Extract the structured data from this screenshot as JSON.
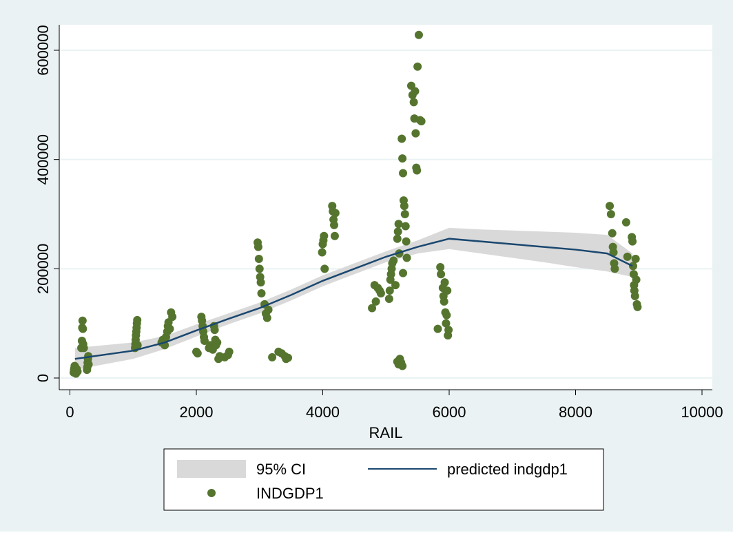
{
  "chart_data": {
    "type": "scatter",
    "title": "",
    "xlabel": "RAIL",
    "ylabel": "",
    "xlim": [
      0,
      10000
    ],
    "ylim": [
      0,
      600000
    ],
    "x_ticks": [
      0,
      2000,
      4000,
      6000,
      8000,
      10000
    ],
    "y_ticks": [
      0,
      200000,
      400000,
      600000
    ],
    "x_tick_labels": [
      "0",
      "2000",
      "4000",
      "6000",
      "8000",
      "10000"
    ],
    "y_tick_labels": [
      "0",
      "200000",
      "400000",
      "600000"
    ],
    "grid": "horizontal",
    "legend_position": "bottom",
    "colors": {
      "background_outer": "#eaf2f3",
      "plot_area": "#ffffff",
      "grid": "#eaf2f3",
      "ci_band": "#d9d9d9",
      "fit_line": "#1a476f",
      "points": "#55752f"
    },
    "legend": [
      {
        "label": "95% CI",
        "kind": "band"
      },
      {
        "label": "predicted indgdp1",
        "kind": "line"
      },
      {
        "label": "INDGDP1",
        "kind": "marker"
      }
    ],
    "fit_line": {
      "name": "predicted indgdp1",
      "x": [
        80,
        1000,
        1500,
        2000,
        2500,
        3000,
        3500,
        4000,
        4500,
        5000,
        5500,
        6000,
        6500,
        7000,
        7500,
        8000,
        8500,
        8900
      ],
      "y": [
        35000,
        50000,
        65000,
        87000,
        108000,
        128000,
        152000,
        178000,
        200000,
        222000,
        240000,
        255000,
        250000,
        245000,
        240000,
        235000,
        228000,
        205000
      ]
    },
    "ci_band": {
      "name": "95% CI",
      "x": [
        80,
        1000,
        1500,
        2000,
        2500,
        3000,
        3500,
        4000,
        4500,
        5000,
        5500,
        6000,
        6500,
        7000,
        7500,
        8000,
        8500,
        8900
      ],
      "lower": [
        15000,
        35000,
        53000,
        76000,
        98000,
        118000,
        142000,
        168000,
        190000,
        212000,
        228000,
        236000,
        228000,
        220000,
        212000,
        203000,
        195000,
        185000
      ],
      "upper": [
        55000,
        65000,
        77000,
        98000,
        118000,
        138000,
        162000,
        188000,
        210000,
        232000,
        252000,
        275000,
        272000,
        270000,
        268000,
        266000,
        262000,
        228000
      ]
    },
    "series": [
      {
        "name": "INDGDP1",
        "points": [
          [
            60,
            10000
          ],
          [
            65,
            15000
          ],
          [
            70,
            18000
          ],
          [
            75,
            22000
          ],
          [
            80,
            12000
          ],
          [
            85,
            20000
          ],
          [
            95,
            8000
          ],
          [
            110,
            16000
          ],
          [
            120,
            12000
          ],
          [
            180,
            55000
          ],
          [
            190,
            68000
          ],
          [
            195,
            92000
          ],
          [
            200,
            105000
          ],
          [
            205,
            90000
          ],
          [
            210,
            62000
          ],
          [
            220,
            55000
          ],
          [
            270,
            15000
          ],
          [
            275,
            20000
          ],
          [
            280,
            28000
          ],
          [
            285,
            35000
          ],
          [
            290,
            40000
          ],
          [
            295,
            25000
          ],
          [
            1030,
            55000
          ],
          [
            1035,
            62000
          ],
          [
            1040,
            70000
          ],
          [
            1045,
            78000
          ],
          [
            1050,
            85000
          ],
          [
            1055,
            92000
          ],
          [
            1060,
            100000
          ],
          [
            1065,
            106000
          ],
          [
            1070,
            60000
          ],
          [
            1450,
            65000
          ],
          [
            1470,
            70000
          ],
          [
            1500,
            60000
          ],
          [
            1520,
            75000
          ],
          [
            1540,
            85000
          ],
          [
            1550,
            95000
          ],
          [
            1560,
            102000
          ],
          [
            1580,
            90000
          ],
          [
            1600,
            120000
          ],
          [
            1620,
            112000
          ],
          [
            2000,
            48000
          ],
          [
            2020,
            45000
          ],
          [
            2080,
            112000
          ],
          [
            2090,
            105000
          ],
          [
            2100,
            95000
          ],
          [
            2110,
            85000
          ],
          [
            2120,
            75000
          ],
          [
            2130,
            68000
          ],
          [
            2200,
            55000
          ],
          [
            2220,
            60000
          ],
          [
            2260,
            52000
          ],
          [
            2280,
            95000
          ],
          [
            2290,
            88000
          ],
          [
            2300,
            70000
          ],
          [
            2310,
            60000
          ],
          [
            2330,
            65000
          ],
          [
            2350,
            35000
          ],
          [
            2370,
            40000
          ],
          [
            2450,
            38000
          ],
          [
            2500,
            42000
          ],
          [
            2520,
            48000
          ],
          [
            2970,
            248000
          ],
          [
            2980,
            240000
          ],
          [
            2990,
            218000
          ],
          [
            3000,
            200000
          ],
          [
            3010,
            185000
          ],
          [
            3020,
            175000
          ],
          [
            3030,
            155000
          ],
          [
            3080,
            135000
          ],
          [
            3100,
            118000
          ],
          [
            3120,
            110000
          ],
          [
            3140,
            125000
          ],
          [
            3200,
            38000
          ],
          [
            3300,
            48000
          ],
          [
            3350,
            45000
          ],
          [
            3400,
            40000
          ],
          [
            3420,
            35000
          ],
          [
            3450,
            37000
          ],
          [
            3990,
            230000
          ],
          [
            4000,
            245000
          ],
          [
            4010,
            252000
          ],
          [
            4020,
            260000
          ],
          [
            4030,
            200000
          ],
          [
            4150,
            315000
          ],
          [
            4160,
            305000
          ],
          [
            4170,
            290000
          ],
          [
            4180,
            280000
          ],
          [
            4190,
            260000
          ],
          [
            4200,
            302000
          ],
          [
            4780,
            128000
          ],
          [
            4820,
            170000
          ],
          [
            4840,
            140000
          ],
          [
            4870,
            165000
          ],
          [
            4900,
            160000
          ],
          [
            4920,
            155000
          ],
          [
            5050,
            145000
          ],
          [
            5060,
            160000
          ],
          [
            5070,
            180000
          ],
          [
            5080,
            190000
          ],
          [
            5090,
            200000
          ],
          [
            5100,
            210000
          ],
          [
            5120,
            215000
          ],
          [
            5150,
            170000
          ],
          [
            5180,
            255000
          ],
          [
            5190,
            268000
          ],
          [
            5200,
            282000
          ],
          [
            5210,
            228000
          ],
          [
            5180,
            30000
          ],
          [
            5200,
            25000
          ],
          [
            5220,
            35000
          ],
          [
            5240,
            28000
          ],
          [
            5260,
            22000
          ],
          [
            5250,
            438000
          ],
          [
            5260,
            402000
          ],
          [
            5270,
            375000
          ],
          [
            5280,
            325000
          ],
          [
            5290,
            315000
          ],
          [
            5300,
            300000
          ],
          [
            5310,
            278000
          ],
          [
            5320,
            250000
          ],
          [
            5330,
            220000
          ],
          [
            5270,
            192000
          ],
          [
            5400,
            535000
          ],
          [
            5420,
            518000
          ],
          [
            5440,
            505000
          ],
          [
            5450,
            475000
          ],
          [
            5460,
            525000
          ],
          [
            5470,
            448000
          ],
          [
            5480,
            385000
          ],
          [
            5490,
            380000
          ],
          [
            5500,
            570000
          ],
          [
            5520,
            628000
          ],
          [
            5540,
            472000
          ],
          [
            5560,
            470000
          ],
          [
            5820,
            90000
          ],
          [
            5860,
            203000
          ],
          [
            5870,
            190000
          ],
          [
            5900,
            165000
          ],
          [
            5910,
            150000
          ],
          [
            5920,
            140000
          ],
          [
            5930,
            175000
          ],
          [
            5940,
            120000
          ],
          [
            5950,
            100000
          ],
          [
            5960,
            115000
          ],
          [
            5970,
            160000
          ],
          [
            5980,
            78000
          ],
          [
            5990,
            88000
          ],
          [
            8540,
            315000
          ],
          [
            8560,
            300000
          ],
          [
            8580,
            265000
          ],
          [
            8590,
            240000
          ],
          [
            8600,
            230000
          ],
          [
            8610,
            210000
          ],
          [
            8620,
            200000
          ],
          [
            8800,
            285000
          ],
          [
            8820,
            222000
          ],
          [
            8890,
            258000
          ],
          [
            8900,
            250000
          ],
          [
            8910,
            205000
          ],
          [
            8920,
            190000
          ],
          [
            8925,
            170000
          ],
          [
            8930,
            160000
          ],
          [
            8940,
            150000
          ],
          [
            8950,
            218000
          ],
          [
            8960,
            180000
          ],
          [
            8970,
            135000
          ],
          [
            8980,
            130000
          ]
        ]
      }
    ]
  }
}
